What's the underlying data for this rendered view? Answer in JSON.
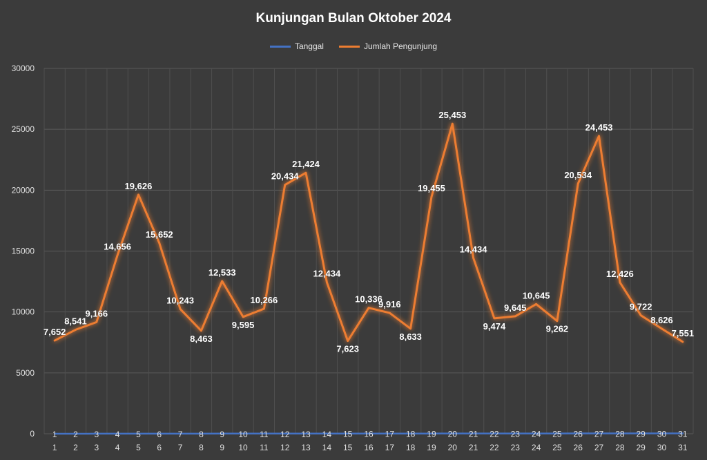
{
  "chart_data": {
    "type": "line",
    "title": "Kunjungan Bulan Oktober 2024",
    "xlabel": "",
    "ylabel": "",
    "ylim": [
      0,
      30000
    ],
    "yticks": [
      0,
      5000,
      10000,
      15000,
      20000,
      25000,
      30000
    ],
    "grid": true,
    "legend_position": "top",
    "categories": [
      "1",
      "2",
      "3",
      "4",
      "5",
      "6",
      "7",
      "8",
      "9",
      "10",
      "11",
      "12",
      "13",
      "14",
      "15",
      "16",
      "17",
      "18",
      "19",
      "20",
      "21",
      "22",
      "23",
      "24",
      "25",
      "26",
      "27",
      "28",
      "29",
      "30",
      "31"
    ],
    "series": [
      {
        "name": "Tanggal",
        "color": "#4472c4",
        "values": [
          1,
          2,
          3,
          4,
          5,
          6,
          7,
          8,
          9,
          10,
          11,
          12,
          13,
          14,
          15,
          16,
          17,
          18,
          19,
          20,
          21,
          22,
          23,
          24,
          25,
          26,
          27,
          28,
          29,
          30,
          31
        ],
        "labels": [
          "1",
          "2",
          "3",
          "4",
          "5",
          "6",
          "7",
          "8",
          "9",
          "10",
          "11",
          "12",
          "13",
          "14",
          "15",
          "16",
          "17",
          "18",
          "19",
          "20",
          "21",
          "22",
          "23",
          "24",
          "25",
          "26",
          "27",
          "28",
          "29",
          "30",
          "31"
        ]
      },
      {
        "name": "Jumlah Pengunjung",
        "color": "#ed7d31",
        "values": [
          7652,
          8541,
          9166,
          14656,
          19626,
          15652,
          10243,
          8463,
          12533,
          9595,
          10266,
          20434,
          21424,
          12434,
          7623,
          10336,
          9916,
          8633,
          19455,
          25453,
          14434,
          9474,
          9645,
          10645,
          9262,
          20534,
          24453,
          12426,
          9722,
          8626,
          7551
        ],
        "labels": [
          "7,652",
          "8,541",
          "9,166",
          "14,656",
          "19,626",
          "15,652",
          "10,243",
          "8,463",
          "12,533",
          "9,595",
          "10,266",
          "20,434",
          "21,424",
          "12,434",
          "7,623",
          "10,336",
          "9,916",
          "8,633",
          "19,455",
          "25,453",
          "14,434",
          "9,474",
          "9,645",
          "10,645",
          "9,262",
          "20,534",
          "24,453",
          "12,426",
          "9,722",
          "8,626",
          "7,551"
        ]
      }
    ]
  }
}
